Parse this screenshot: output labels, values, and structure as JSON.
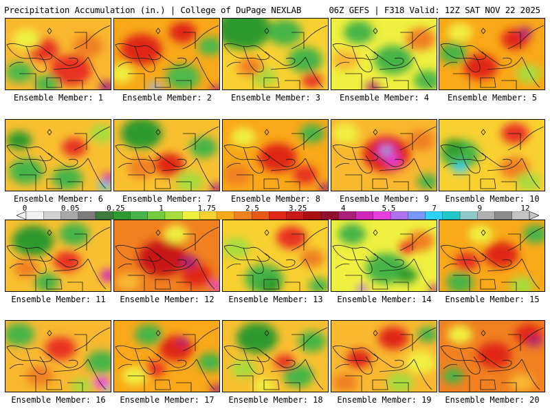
{
  "header": {
    "left": "Precipitation Accumulation (in.) | College of DuPage NEXLAB",
    "right": "06Z GEFS | F318 Valid: 12Z SAT NOV 22 2025"
  },
  "colorbar": {
    "labels": [
      "0",
      "0.05",
      "0.25",
      "1",
      "1.75",
      "2.5",
      "3.25",
      "4",
      "5.5",
      "7",
      "9",
      "12"
    ],
    "colors": [
      "#f2f2f2",
      "#d0d0d0",
      "#a8a8a8",
      "#7c7c7c",
      "#3c7a3c",
      "#2e9a2e",
      "#46b446",
      "#72cc3c",
      "#a8dc3c",
      "#f0f040",
      "#f8d030",
      "#f8a818",
      "#f08020",
      "#e85818",
      "#e02818",
      "#c81818",
      "#a81010",
      "#901030",
      "#a8207a",
      "#d028b8",
      "#e840e0",
      "#b070f0",
      "#7898f8",
      "#30d0f8",
      "#20c8c8",
      "#90c8c8",
      "#b0b0b0",
      "#8c8c8c",
      "#c4c4c4"
    ]
  },
  "panels": [
    {
      "caption": "Ensemble Member: 1",
      "base": "#f8b830",
      "blobs": [
        [
          "#e83020",
          95,
          75,
          30
        ],
        [
          "#e83020",
          55,
          45,
          22
        ],
        [
          "#50b848",
          20,
          78,
          20
        ],
        [
          "#50b848",
          60,
          95,
          18
        ],
        [
          "#a8207a",
          148,
          100,
          12
        ],
        [
          "#f0f040",
          30,
          30,
          20
        ],
        [
          "#f08020",
          120,
          40,
          22
        ]
      ]
    },
    {
      "caption": "Ensemble Member: 2",
      "base": "#f8a818",
      "blobs": [
        [
          "#e02818",
          40,
          45,
          30
        ],
        [
          "#e02818",
          100,
          20,
          20
        ],
        [
          "#50b848",
          100,
          85,
          25
        ],
        [
          "#50b848",
          140,
          40,
          18
        ],
        [
          "#b0b0b0",
          60,
          100,
          12
        ],
        [
          "#f0f040",
          10,
          80,
          18
        ],
        [
          "#a8207a",
          150,
          105,
          10
        ]
      ]
    },
    {
      "caption": "Ensemble Member: 3",
      "base": "#f8d030",
      "blobs": [
        [
          "#2e9a2e",
          30,
          15,
          40
        ],
        [
          "#46b446",
          120,
          60,
          25
        ],
        [
          "#46b446",
          90,
          20,
          25
        ],
        [
          "#e83020",
          130,
          90,
          15
        ],
        [
          "#a8dc3c",
          60,
          85,
          18
        ],
        [
          "#f08020",
          40,
          70,
          18
        ]
      ]
    },
    {
      "caption": "Ensemble Member: 4",
      "base": "#f0f040",
      "blobs": [
        [
          "#46b446",
          90,
          60,
          28
        ],
        [
          "#46b446",
          40,
          20,
          22
        ],
        [
          "#f08020",
          130,
          30,
          22
        ],
        [
          "#a8207a",
          60,
          100,
          10
        ],
        [
          "#50b848",
          140,
          90,
          20
        ],
        [
          "#f8b830",
          20,
          60,
          20
        ]
      ]
    },
    {
      "caption": "Ensemble Member: 5",
      "base": "#f8a818",
      "blobs": [
        [
          "#e02818",
          60,
          70,
          25
        ],
        [
          "#e02818",
          110,
          30,
          20
        ],
        [
          "#a8207a",
          125,
          20,
          10
        ],
        [
          "#46b446",
          20,
          50,
          20
        ],
        [
          "#a8dc3c",
          130,
          80,
          18
        ],
        [
          "#f0f040",
          30,
          20,
          18
        ]
      ]
    },
    {
      "caption": "Ensemble Member: 6",
      "base": "#f8c030",
      "blobs": [
        [
          "#46b446",
          30,
          75,
          25
        ],
        [
          "#46b446",
          90,
          85,
          22
        ],
        [
          "#2e9a2e",
          20,
          30,
          18
        ],
        [
          "#e83020",
          100,
          40,
          18
        ],
        [
          "#30d0f8",
          145,
          95,
          10
        ],
        [
          "#d028b8",
          150,
          85,
          10
        ],
        [
          "#a8dc3c",
          140,
          20,
          18
        ]
      ]
    },
    {
      "caption": "Ensemble Member: 7",
      "base": "#f8c030",
      "blobs": [
        [
          "#2e9a2e",
          40,
          20,
          30
        ],
        [
          "#46b446",
          130,
          40,
          20
        ],
        [
          "#e02818",
          80,
          65,
          22
        ],
        [
          "#f08020",
          40,
          70,
          20
        ],
        [
          "#a8dc3c",
          110,
          90,
          20
        ],
        [
          "#a8207a",
          150,
          100,
          10
        ]
      ]
    },
    {
      "caption": "Ensemble Member: 8",
      "base": "#f8a818",
      "blobs": [
        [
          "#e02818",
          80,
          55,
          28
        ],
        [
          "#f0f040",
          30,
          25,
          18
        ],
        [
          "#46b446",
          130,
          20,
          18
        ],
        [
          "#f08020",
          20,
          80,
          20
        ],
        [
          "#a8207a",
          150,
          100,
          10
        ],
        [
          "#e83020",
          120,
          80,
          18
        ]
      ]
    },
    {
      "caption": "Ensemble Member: 9",
      "base": "#f8b830",
      "blobs": [
        [
          "#e02818",
          80,
          50,
          35
        ],
        [
          "#d028b8",
          80,
          45,
          16
        ],
        [
          "#30d0f8",
          80,
          45,
          6
        ],
        [
          "#e840e0",
          90,
          60,
          10
        ],
        [
          "#f0f040",
          20,
          20,
          20
        ],
        [
          "#46b446",
          140,
          90,
          15
        ],
        [
          "#f08020",
          130,
          30,
          20
        ]
      ]
    },
    {
      "caption": "Ensemble Member: 10",
      "base": "#f8d030",
      "blobs": [
        [
          "#46b446",
          30,
          50,
          28
        ],
        [
          "#2e9a2e",
          20,
          40,
          15
        ],
        [
          "#e83020",
          110,
          20,
          20
        ],
        [
          "#f08020",
          110,
          70,
          22
        ],
        [
          "#30d0f8",
          30,
          70,
          10
        ],
        [
          "#a8dc3c",
          130,
          90,
          18
        ]
      ]
    },
    {
      "caption": "Ensemble Member: 11",
      "base": "#f8c030",
      "blobs": [
        [
          "#2e9a2e",
          40,
          30,
          30
        ],
        [
          "#46b446",
          100,
          20,
          22
        ],
        [
          "#46b446",
          60,
          90,
          18
        ],
        [
          "#e83020",
          90,
          60,
          20
        ],
        [
          "#d028b8",
          150,
          80,
          12
        ],
        [
          "#f08020",
          30,
          70,
          18
        ]
      ]
    },
    {
      "caption": "Ensemble Member: 12",
      "base": "#f08020",
      "blobs": [
        [
          "#c81818",
          70,
          55,
          35
        ],
        [
          "#e02818",
          120,
          80,
          22
        ],
        [
          "#f0f040",
          90,
          20,
          18
        ],
        [
          "#a8207a",
          110,
          60,
          12
        ],
        [
          "#e840e0",
          150,
          95,
          10
        ],
        [
          "#f8b830",
          20,
          90,
          18
        ]
      ]
    },
    {
      "caption": "Ensemble Member: 13",
      "base": "#f8d030",
      "blobs": [
        [
          "#46b446",
          60,
          85,
          28
        ],
        [
          "#2e9a2e",
          70,
          95,
          15
        ],
        [
          "#e83020",
          100,
          25,
          22
        ],
        [
          "#a8dc3c",
          20,
          40,
          20
        ],
        [
          "#f08020",
          130,
          55,
          18
        ],
        [
          "#46b446",
          140,
          95,
          15
        ]
      ]
    },
    {
      "caption": "Ensemble Member: 14",
      "base": "#f0f040",
      "blobs": [
        [
          "#46b446",
          80,
          70,
          30
        ],
        [
          "#2e9a2e",
          110,
          80,
          15
        ],
        [
          "#46b446",
          30,
          20,
          20
        ],
        [
          "#f08020",
          130,
          30,
          20
        ],
        [
          "#e83020",
          110,
          40,
          12
        ],
        [
          "#b070f0",
          45,
          100,
          8
        ],
        [
          "#a8207a",
          150,
          100,
          8
        ]
      ]
    },
    {
      "caption": "Ensemble Member: 15",
      "base": "#f8a818",
      "blobs": [
        [
          "#e02818",
          90,
          50,
          25
        ],
        [
          "#46b446",
          30,
          90,
          20
        ],
        [
          "#46b446",
          140,
          20,
          18
        ],
        [
          "#f0f040",
          60,
          20,
          18
        ],
        [
          "#e83020",
          40,
          60,
          18
        ],
        [
          "#a8dc3c",
          120,
          95,
          18
        ]
      ]
    },
    {
      "caption": "Ensemble Member: 16",
      "base": "#f8b830",
      "blobs": [
        [
          "#46b446",
          20,
          20,
          22
        ],
        [
          "#46b446",
          140,
          60,
          22
        ],
        [
          "#e83020",
          80,
          40,
          22
        ],
        [
          "#f08020",
          50,
          80,
          20
        ],
        [
          "#e840e0",
          140,
          90,
          12
        ],
        [
          "#30d0f8",
          150,
          100,
          6
        ],
        [
          "#a8dc3c",
          110,
          95,
          15
        ]
      ]
    },
    {
      "caption": "Ensemble Member: 17",
      "base": "#f8a818",
      "blobs": [
        [
          "#e02818",
          90,
          40,
          25
        ],
        [
          "#a8207a",
          100,
          30,
          8
        ],
        [
          "#46b446",
          50,
          20,
          20
        ],
        [
          "#46b446",
          140,
          60,
          18
        ],
        [
          "#f0f040",
          30,
          80,
          18
        ],
        [
          "#e83020",
          60,
          70,
          15
        ],
        [
          "#a8207a",
          150,
          100,
          10
        ]
      ]
    },
    {
      "caption": "Ensemble Member: 18",
      "base": "#f8c030",
      "blobs": [
        [
          "#2e9a2e",
          50,
          25,
          30
        ],
        [
          "#46b446",
          110,
          80,
          22
        ],
        [
          "#46b446",
          130,
          30,
          20
        ],
        [
          "#e83020",
          90,
          60,
          15
        ],
        [
          "#a8dc3c",
          30,
          70,
          18
        ],
        [
          "#f0f040",
          60,
          95,
          15
        ]
      ]
    },
    {
      "caption": "Ensemble Member: 19",
      "base": "#f8b830",
      "blobs": [
        [
          "#e02818",
          90,
          25,
          22
        ],
        [
          "#e02818",
          40,
          55,
          18
        ],
        [
          "#f0f040",
          130,
          60,
          22
        ],
        [
          "#46b446",
          140,
          20,
          15
        ],
        [
          "#a8dc3c",
          100,
          90,
          20
        ],
        [
          "#f08020",
          20,
          90,
          18
        ]
      ]
    },
    {
      "caption": "Ensemble Member: 20",
      "base": "#f08020",
      "blobs": [
        [
          "#e02818",
          80,
          50,
          25
        ],
        [
          "#e02818",
          130,
          20,
          20
        ],
        [
          "#a8207a",
          140,
          30,
          10
        ],
        [
          "#f0f040",
          30,
          20,
          18
        ],
        [
          "#46b446",
          20,
          80,
          15
        ],
        [
          "#f8b830",
          120,
          90,
          18
        ]
      ]
    }
  ]
}
